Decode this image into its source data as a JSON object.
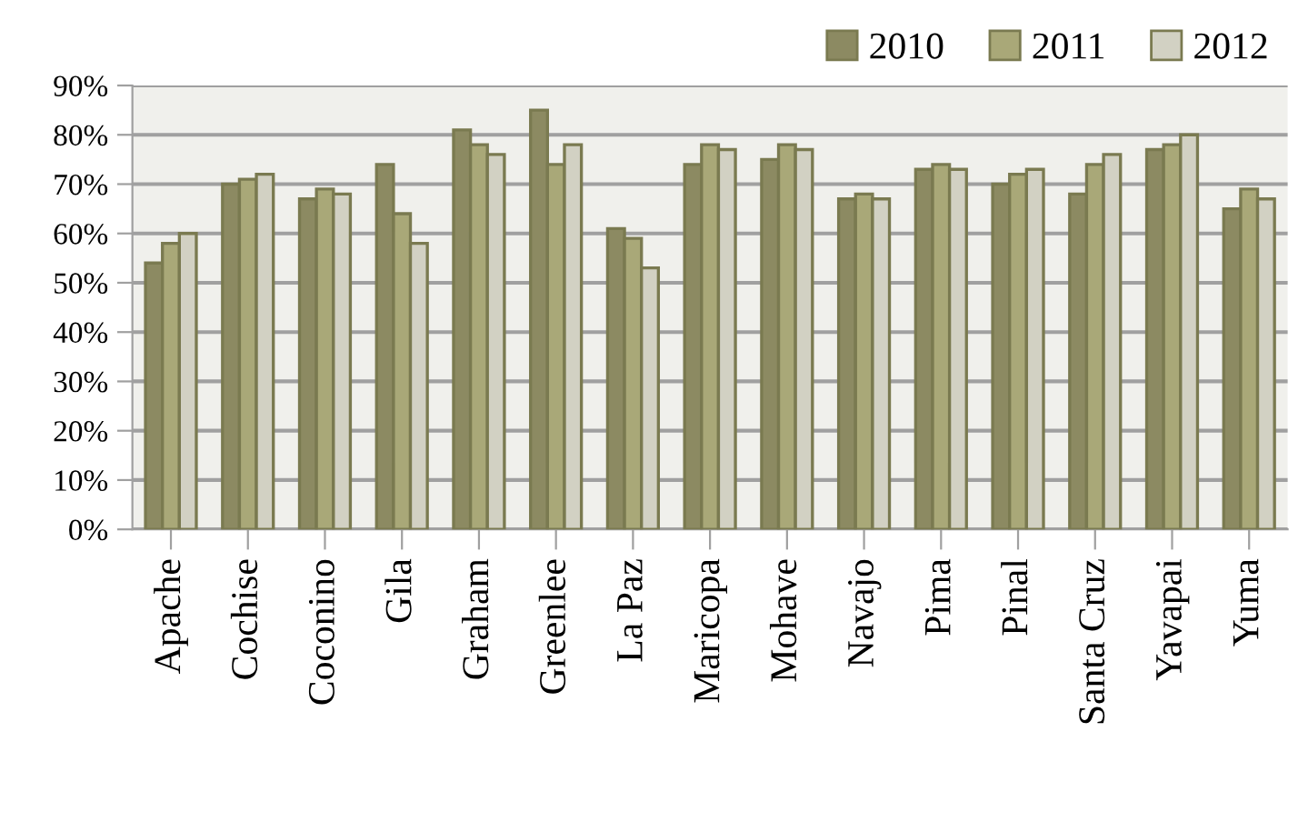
{
  "chart_data": {
    "type": "bar",
    "categories": [
      "Apache",
      "Cochise",
      "Coconino",
      "Gila",
      "Graham",
      "Greenlee",
      "La Paz",
      "Maricopa",
      "Mohave",
      "Navajo",
      "Pima",
      "Pinal",
      "Santa Cruz",
      "Yavapai",
      "Yuma"
    ],
    "series": [
      {
        "name": "2010",
        "color": "#8c8a62",
        "values": [
          54,
          70,
          67,
          74,
          81,
          85,
          61,
          74,
          75,
          67,
          73,
          70,
          68,
          77,
          65
        ]
      },
      {
        "name": "2011",
        "color": "#a9a878",
        "values": [
          58,
          71,
          69,
          64,
          78,
          74,
          59,
          78,
          78,
          68,
          74,
          72,
          74,
          78,
          69
        ]
      },
      {
        "name": "2012",
        "color": "#d2d1c3",
        "values": [
          60,
          72,
          68,
          58,
          76,
          78,
          53,
          77,
          77,
          67,
          73,
          73,
          76,
          80,
          67
        ]
      }
    ],
    "ylim": [
      0,
      90
    ],
    "yticks": [
      {
        "value": 0,
        "label": "0%"
      },
      {
        "value": 10,
        "label": "10%"
      },
      {
        "value": 20,
        "label": "20%"
      },
      {
        "value": 30,
        "label": "30%"
      },
      {
        "value": 40,
        "label": "40%"
      },
      {
        "value": 50,
        "label": "50%"
      },
      {
        "value": 60,
        "label": "60%"
      },
      {
        "value": 70,
        "label": "70%"
      },
      {
        "value": 80,
        "label": "80%"
      },
      {
        "value": 90,
        "label": "90%"
      }
    ],
    "grid": "y",
    "legend": "top right"
  }
}
